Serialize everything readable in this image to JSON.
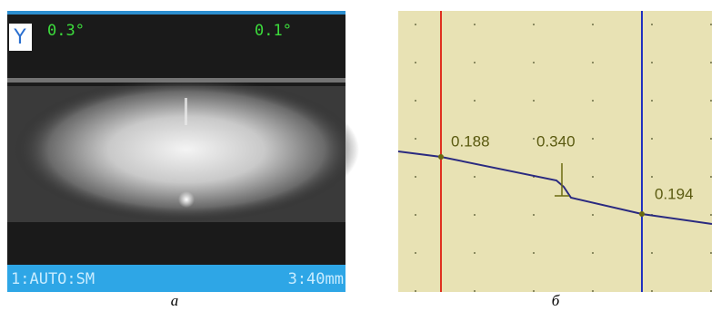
{
  "panel_a": {
    "axis": "Y",
    "angle_left": "0.3°",
    "angle_right": "0.1°",
    "status_left": "1:AUTO:SM",
    "status_right": "3:40mm",
    "caption": "а"
  },
  "panel_b": {
    "labels": [
      "0.188",
      "0.340",
      "0.194"
    ],
    "caption": "б"
  }
}
